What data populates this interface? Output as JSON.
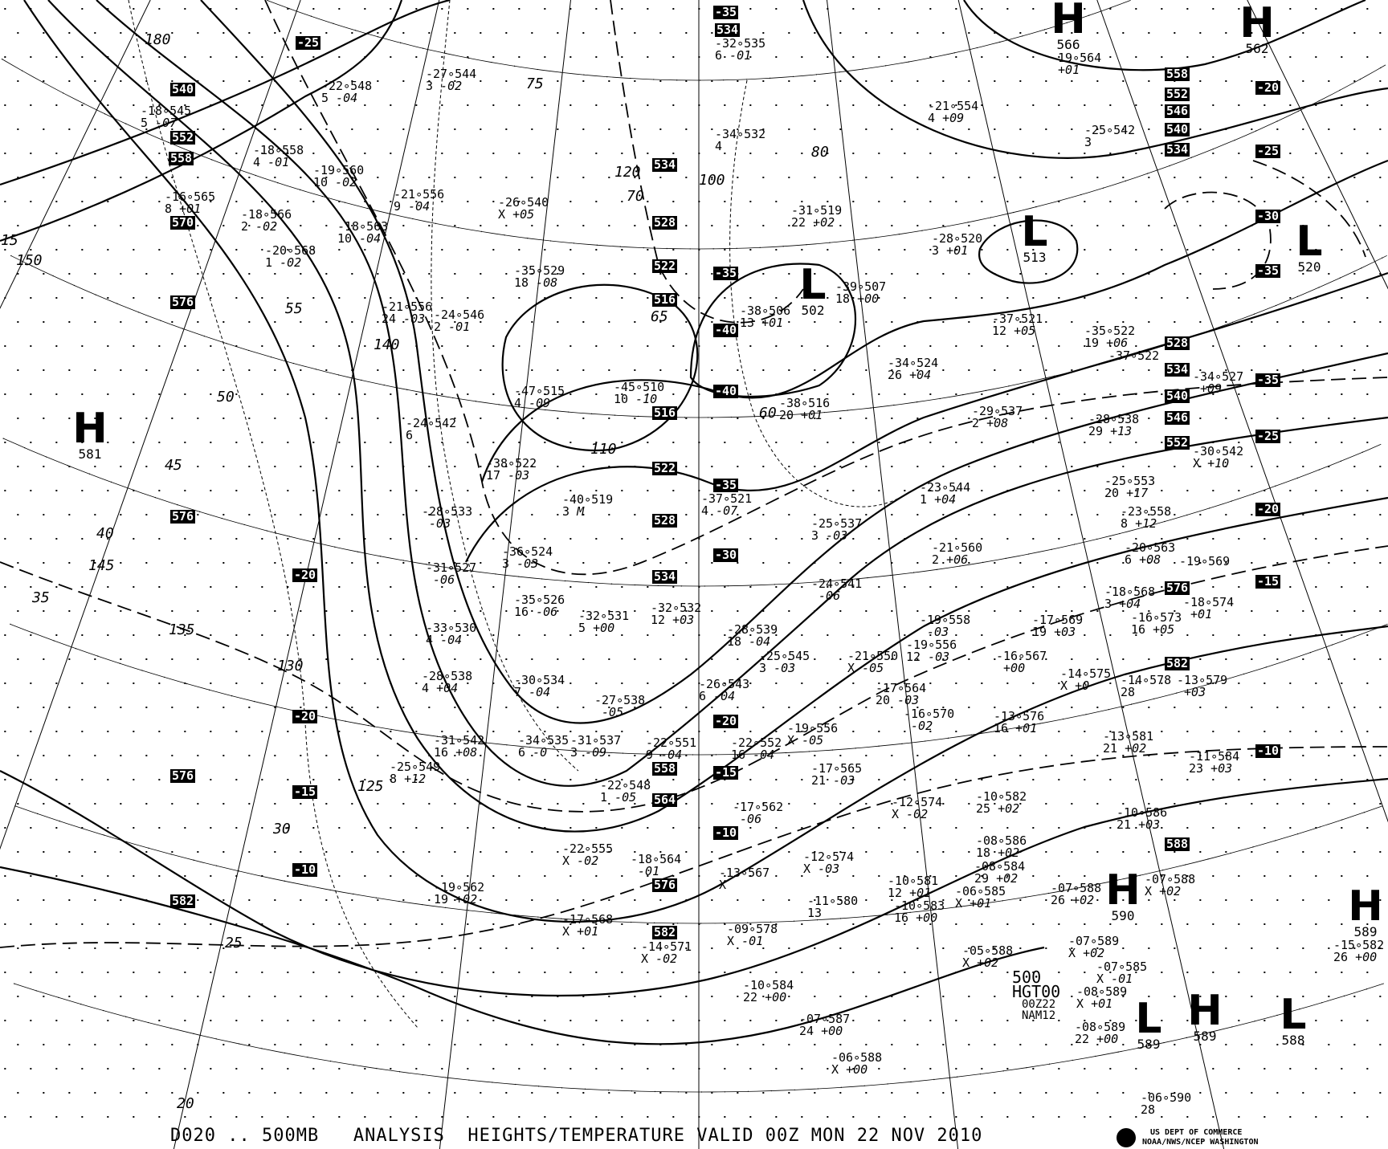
{
  "caption": "D020 .. 500MB   ANALYSIS  HEIGHTS/TEMPERATURE VALID 00Z MON 22 NOV 2010",
  "product": {
    "level": "500",
    "field": "HGT00",
    "cycle": "00Z22",
    "model": "NAM12"
  },
  "agency": {
    "line1": "US DEPT OF COMMERCE",
    "line2": "NOAA/NWS/NCEP WASHINGTON",
    "logo": "noaa-logo"
  },
  "height_labels": [
    "534",
    "540",
    "552",
    "558",
    "570",
    "576",
    "576",
    "576",
    "582",
    "534",
    "528",
    "522",
    "516",
    "516",
    "522",
    "528",
    "534",
    "558",
    "564",
    "576",
    "582",
    "558",
    "552",
    "546",
    "540",
    "534",
    "528",
    "534",
    "540",
    "546",
    "552",
    "576",
    "582",
    "588"
  ],
  "temperature_labels": [
    "-35",
    "-25",
    "-35",
    "-40",
    "-40",
    "-35",
    "-30",
    "-20",
    "-20",
    "-15",
    "-10",
    "-20",
    "-15",
    "-10",
    "-20",
    "-25",
    "-30",
    "-35",
    "-35",
    "-25",
    "-20",
    "-15",
    "-10"
  ],
  "centers": [
    {
      "type": "H",
      "value": "581"
    },
    {
      "type": "H",
      "value": "562"
    },
    {
      "type": "L",
      "value": "513"
    },
    {
      "type": "L",
      "value": "520"
    },
    {
      "type": "L",
      "value": "502"
    },
    {
      "type": "H",
      "value": "590"
    },
    {
      "type": "H",
      "value": "589"
    },
    {
      "type": "L",
      "value": "589"
    },
    {
      "type": "H",
      "value": "589"
    },
    {
      "type": "L",
      "value": "588"
    },
    {
      "type": "H",
      "value": "566"
    }
  ],
  "stations": [
    {
      "t": "-32",
      "h": "535",
      "dd": "6",
      "chg": "-01"
    },
    {
      "t": "-27",
      "h": "544",
      "dd": "3",
      "chg": "-02"
    },
    {
      "t": "-22",
      "h": "548",
      "dd": "5",
      "chg": "-04"
    },
    {
      "t": "-18",
      "h": "545",
      "dd": "5",
      "chg": "-07"
    },
    {
      "t": "-18",
      "h": "558",
      "dd": "4",
      "chg": "-01"
    },
    {
      "t": "-19",
      "h": "560",
      "dd": "10",
      "chg": "-02"
    },
    {
      "t": "-21",
      "h": "556",
      "dd": "9",
      "chg": "-04"
    },
    {
      "t": "-16",
      "h": "565",
      "dd": "8",
      "chg": "+01"
    },
    {
      "t": "-18",
      "h": "566",
      "dd": "2",
      "chg": "-02"
    },
    {
      "t": "-18",
      "h": "563",
      "dd": "10",
      "chg": "-04"
    },
    {
      "t": "-20",
      "h": "568",
      "dd": "1",
      "chg": "-02"
    },
    {
      "t": "-34",
      "h": "532",
      "dd": "4",
      "chg": ""
    },
    {
      "t": "-21",
      "h": "554",
      "dd": "4",
      "chg": "+09"
    },
    {
      "t": "-19",
      "h": "564",
      "dd": "",
      "chg": "+01"
    },
    {
      "t": "-25",
      "h": "542",
      "dd": "3",
      "chg": ""
    },
    {
      "t": "-26",
      "h": "540",
      "dd": "X",
      "chg": "+05"
    },
    {
      "t": "-31",
      "h": "519",
      "dd": "22",
      "chg": "+02"
    },
    {
      "t": "-28",
      "h": "520",
      "dd": "3",
      "chg": "+01"
    },
    {
      "t": "-35",
      "h": "529",
      "dd": "18",
      "chg": "-08"
    },
    {
      "t": "-39",
      "h": "507",
      "dd": "18",
      "chg": "+00"
    },
    {
      "t": "-38",
      "h": "506",
      "dd": "13",
      "chg": "+01"
    },
    {
      "t": "-21",
      "h": "556",
      "dd": "24",
      "chg": "-03"
    },
    {
      "t": "-24",
      "h": "546",
      "dd": "2",
      "chg": "-01"
    },
    {
      "t": "-37",
      "h": "521",
      "dd": "12",
      "chg": "+05"
    },
    {
      "t": "-35",
      "h": "522",
      "dd": "19",
      "chg": "+06"
    },
    {
      "t": "-37",
      "h": "522",
      "dd": "",
      "chg": ""
    },
    {
      "t": "-34",
      "h": "524",
      "dd": "26",
      "chg": "+04"
    },
    {
      "t": "-34",
      "h": "527",
      "dd": "",
      "chg": "+09"
    },
    {
      "t": "-47",
      "h": "515",
      "dd": "4",
      "chg": "-09"
    },
    {
      "t": "-45",
      "h": "510",
      "dd": "10",
      "chg": "-10"
    },
    {
      "t": "-38",
      "h": "516",
      "dd": "20",
      "chg": "+01"
    },
    {
      "t": "-24",
      "h": "542",
      "dd": "6",
      "chg": ""
    },
    {
      "t": "-29",
      "h": "537",
      "dd": "2",
      "chg": "+08"
    },
    {
      "t": "-28",
      "h": "538",
      "dd": "29",
      "chg": "+13"
    },
    {
      "t": "-30",
      "h": "542",
      "dd": "X",
      "chg": "+10"
    },
    {
      "t": "-38",
      "h": "522",
      "dd": "17",
      "chg": "-03"
    },
    {
      "t": "-40",
      "h": "519",
      "dd": "3",
      "chg": "M"
    },
    {
      "t": "-37",
      "h": "521",
      "dd": "4",
      "chg": "-07"
    },
    {
      "t": "-23",
      "h": "544",
      "dd": "1",
      "chg": "+04"
    },
    {
      "t": "-25",
      "h": "553",
      "dd": "20",
      "chg": "+17"
    },
    {
      "t": "-23",
      "h": "558",
      "dd": "8",
      "chg": "+12"
    },
    {
      "t": "-28",
      "h": "533",
      "dd": "",
      "chg": "-03"
    },
    {
      "t": "-36",
      "h": "524",
      "dd": "3",
      "chg": "-03"
    },
    {
      "t": "-25",
      "h": "537",
      "dd": "3",
      "chg": "-03"
    },
    {
      "t": "-21",
      "h": "560",
      "dd": "2",
      "chg": "+06"
    },
    {
      "t": "-20",
      "h": "563",
      "dd": "6",
      "chg": "+08"
    },
    {
      "t": "-31",
      "h": "527",
      "dd": "",
      "chg": "-06"
    },
    {
      "t": "-35",
      "h": "526",
      "dd": "16",
      "chg": "-06"
    },
    {
      "t": "-32",
      "h": "531",
      "dd": "5",
      "chg": "+00"
    },
    {
      "t": "-32",
      "h": "532",
      "dd": "12",
      "chg": "+03"
    },
    {
      "t": "-24",
      "h": "541",
      "dd": "",
      "chg": "-06"
    },
    {
      "t": "-19",
      "h": "569",
      "dd": "",
      "chg": ""
    },
    {
      "t": "-18",
      "h": "568",
      "dd": "3",
      "chg": "+04"
    },
    {
      "t": "-18",
      "h": "574",
      "dd": "",
      "chg": "+01"
    },
    {
      "t": "-16",
      "h": "573",
      "dd": "16",
      "chg": "+05"
    },
    {
      "t": "-33",
      "h": "530",
      "dd": "4",
      "chg": "-04"
    },
    {
      "t": "-28",
      "h": "539",
      "dd": "18",
      "chg": "-04"
    },
    {
      "t": "-19",
      "h": "558",
      "dd": "",
      "chg": "-03"
    },
    {
      "t": "-17",
      "h": "569",
      "dd": "19",
      "chg": "+03"
    },
    {
      "t": "-25",
      "h": "545",
      "dd": "3",
      "chg": "-03"
    },
    {
      "t": "-21",
      "h": "550",
      "dd": "X",
      "chg": "-05"
    },
    {
      "t": "-19",
      "h": "556",
      "dd": "12",
      "chg": "-03"
    },
    {
      "t": "-16",
      "h": "567",
      "dd": "",
      "chg": "+00"
    },
    {
      "t": "-14",
      "h": "575",
      "dd": "X",
      "chg": "+0"
    },
    {
      "t": "-14",
      "h": "578",
      "dd": "28",
      "chg": ""
    },
    {
      "t": "-13",
      "h": "579",
      "dd": "",
      "chg": "+03"
    },
    {
      "t": "-28",
      "h": "538",
      "dd": "4",
      "chg": "+04"
    },
    {
      "t": "-30",
      "h": "534",
      "dd": "7",
      "chg": "-04"
    },
    {
      "t": "-27",
      "h": "538",
      "dd": "",
      "chg": "-05"
    },
    {
      "t": "-26",
      "h": "543",
      "dd": "6",
      "chg": "-04"
    },
    {
      "t": "-17",
      "h": "564",
      "dd": "20",
      "chg": "-03"
    },
    {
      "t": "-16",
      "h": "570",
      "dd": "",
      "chg": "-02"
    },
    {
      "t": "-13",
      "h": "576",
      "dd": "16",
      "chg": "+01"
    },
    {
      "t": "-13",
      "h": "581",
      "dd": "21",
      "chg": "+02"
    },
    {
      "t": "-11",
      "h": "584",
      "dd": "23",
      "chg": "+03"
    },
    {
      "t": "-31",
      "h": "542",
      "dd": "16",
      "chg": "+08"
    },
    {
      "t": "-34",
      "h": "535",
      "dd": "6",
      "chg": "-0"
    },
    {
      "t": "-31",
      "h": "537",
      "dd": "3",
      "chg": "-09"
    },
    {
      "t": "-22",
      "h": "552",
      "dd": "16",
      "chg": "-04"
    },
    {
      "t": "-19",
      "h": "556",
      "dd": "X",
      "chg": "-05"
    },
    {
      "t": "-25",
      "h": "549",
      "dd": "8",
      "chg": "+12"
    },
    {
      "t": "-22",
      "h": "551",
      "dd": "9",
      "chg": "-04"
    },
    {
      "t": "-22",
      "h": "548",
      "dd": "1",
      "chg": "-05"
    },
    {
      "t": "-17",
      "h": "565",
      "dd": "21",
      "chg": "-03"
    },
    {
      "t": "-12",
      "h": "574",
      "dd": "X",
      "chg": "-02"
    },
    {
      "t": "-10",
      "h": "582",
      "dd": "25",
      "chg": "+02"
    },
    {
      "t": "-10",
      "h": "586",
      "dd": "21",
      "chg": "+03"
    },
    {
      "t": "-17",
      "h": "562",
      "dd": "",
      "chg": "-06"
    },
    {
      "t": "-08",
      "h": "586",
      "dd": "18",
      "chg": "+02"
    },
    {
      "t": "-08",
      "h": "584",
      "dd": "29",
      "chg": "+02"
    },
    {
      "t": "-22",
      "h": "555",
      "dd": "X",
      "chg": "-02"
    },
    {
      "t": "-18",
      "h": "564",
      "dd": "",
      "chg": "-01"
    },
    {
      "t": "-13",
      "h": "567",
      "dd": "X",
      "chg": ""
    },
    {
      "t": "-12",
      "h": "574",
      "dd": "X",
      "chg": "-03"
    },
    {
      "t": "-10",
      "h": "581",
      "dd": "12",
      "chg": "+01"
    },
    {
      "t": "-07",
      "h": "588",
      "dd": "X",
      "chg": "+02"
    },
    {
      "t": "-19",
      "h": "562",
      "dd": "19",
      "chg": "+02"
    },
    {
      "t": "-11",
      "h": "580",
      "dd": "13",
      "chg": ""
    },
    {
      "t": "-10",
      "h": "583",
      "dd": "16",
      "chg": "+00"
    },
    {
      "t": "-06",
      "h": "585",
      "dd": "X",
      "chg": "+01"
    },
    {
      "t": "-07",
      "h": "588",
      "dd": "26",
      "chg": "+02"
    },
    {
      "t": "-17",
      "h": "568",
      "dd": "X",
      "chg": "+01"
    },
    {
      "t": "-14",
      "h": "571",
      "dd": "X",
      "chg": "-02"
    },
    {
      "t": "-09",
      "h": "578",
      "dd": "X",
      "chg": "-01"
    },
    {
      "t": "-05",
      "h": "588",
      "dd": "X",
      "chg": "+02"
    },
    {
      "t": "-07",
      "h": "589",
      "dd": "X",
      "chg": "+02"
    },
    {
      "t": "-07",
      "h": "585",
      "dd": "X",
      "chg": "-01"
    },
    {
      "t": "-08",
      "h": "589",
      "dd": "X",
      "chg": "+01"
    },
    {
      "t": "-10",
      "h": "584",
      "dd": "22",
      "chg": "+00"
    },
    {
      "t": "-08",
      "h": "589",
      "dd": "22",
      "chg": "+00"
    },
    {
      "t": "-07",
      "h": "587",
      "dd": "24",
      "chg": "+00"
    },
    {
      "t": "-06",
      "h": "588",
      "dd": "X",
      "chg": "+00"
    },
    {
      "t": "-06",
      "h": "590",
      "dd": "28",
      "chg": ""
    },
    {
      "t": "-15",
      "h": "582",
      "dd": "26",
      "chg": "+00"
    }
  ],
  "isotach_labels": [
    "180",
    "150",
    "140",
    "130",
    "125",
    "110",
    "120",
    "100",
    "80",
    "75",
    "70",
    "65",
    "60",
    "55",
    "50",
    "45",
    "40",
    "35",
    "30",
    "25",
    "20",
    "15",
    "145",
    "135"
  ]
}
